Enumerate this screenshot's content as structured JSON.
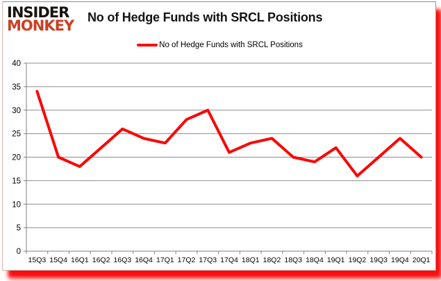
{
  "logo": {
    "line1": "INSIDER",
    "line2": "MONKEY"
  },
  "header": {
    "title": "No of Hedge Funds with SRCL Positions"
  },
  "legend": {
    "label": "No of Hedge Funds with SRCL Positions",
    "swatch_color": "#fe0202"
  },
  "chart_data": {
    "type": "line",
    "title": "No of Hedge Funds with SRCL Positions",
    "series_name": "No of Hedge Funds with SRCL Positions",
    "categories": [
      "15Q3",
      "15Q4",
      "16Q1",
      "16Q2",
      "16Q3",
      "16Q4",
      "17Q1",
      "17Q2",
      "17Q3",
      "17Q4",
      "18Q1",
      "18Q2",
      "18Q3",
      "18Q4",
      "19Q1",
      "19Q2",
      "19Q3",
      "19Q4",
      "20Q1"
    ],
    "values": [
      34,
      20,
      18,
      22,
      26,
      24,
      23,
      28,
      30,
      21,
      23,
      24,
      20,
      19,
      22,
      16,
      20,
      24,
      20
    ],
    "xlabel": "",
    "ylabel": "",
    "ylim": [
      0,
      40
    ],
    "ytick_step": 5,
    "grid": true,
    "legend_position": "top",
    "line_color": "#fe0202",
    "line_width": 4
  },
  "colors": {
    "gridline": "#8c8c8c",
    "axis": "#7f7f7f",
    "tick_label": "#000000",
    "shadow": "#fe0202",
    "logo_red": "#cb4023",
    "title_text": "#141414"
  }
}
